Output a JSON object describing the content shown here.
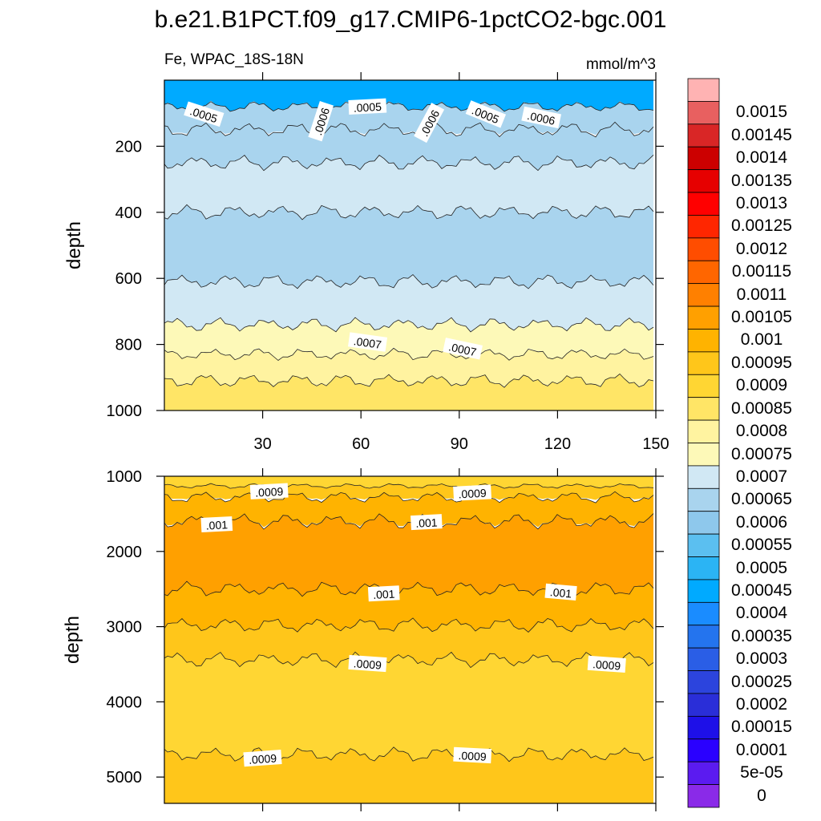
{
  "chart_data": [
    {
      "type": "filled-contour",
      "title": "b.e21.B1PCT.f09_g17.CMIP6-1pctCO2-bgc.001",
      "left_string": "Fe, WPAC_18S-18N",
      "right_string": "mmol/m^3",
      "ylabel": "depth",
      "xlabel": "",
      "xlim": [
        0,
        150
      ],
      "ylim": [
        1000,
        0
      ],
      "xticks": [
        30,
        60,
        90,
        120,
        150
      ],
      "xtick_labels": [
        "30",
        "60",
        "90",
        "120",
        "150"
      ],
      "yticks": [
        200,
        400,
        600,
        800,
        1000
      ],
      "ytick_labels": [
        "200",
        "400",
        "600",
        "800",
        "1000"
      ],
      "bands": [
        {
          "from": 0,
          "to": 80,
          "value": 0.0004
        },
        {
          "from": 80,
          "to": 150,
          "value": 0.0006
        },
        {
          "from": 150,
          "to": 250,
          "value": 0.0006
        },
        {
          "from": 250,
          "to": 400,
          "value": 0.00065
        },
        {
          "from": 400,
          "to": 610,
          "value": 0.0006
        },
        {
          "from": 610,
          "to": 740,
          "value": 0.00065
        },
        {
          "from": 740,
          "to": 830,
          "value": 0.0007
        },
        {
          "from": 830,
          "to": 910,
          "value": 0.00075
        },
        {
          "from": 910,
          "to": 1000,
          "value": 0.0008
        }
      ],
      "contour_labels": [
        {
          "text": ".0005",
          "x": 12,
          "y": 105,
          "angle": 18
        },
        {
          "text": ".0006",
          "x": 48,
          "y": 125,
          "angle": -72
        },
        {
          "text": ".0005",
          "x": 62,
          "y": 82,
          "angle": -3
        },
        {
          "text": ".0006",
          "x": 81,
          "y": 130,
          "angle": -62
        },
        {
          "text": ".0005",
          "x": 98,
          "y": 105,
          "angle": 22
        },
        {
          "text": ".0006",
          "x": 115,
          "y": 115,
          "angle": 12
        },
        {
          "text": ".0007",
          "x": 62,
          "y": 795,
          "angle": 8
        },
        {
          "text": ".0007",
          "x": 91,
          "y": 815,
          "angle": 12
        }
      ]
    },
    {
      "type": "filled-contour",
      "ylabel": "depth",
      "xlabel": "",
      "xlim": [
        0,
        150
      ],
      "ylim": [
        5350,
        1000
      ],
      "xticks": [
        30,
        60,
        90,
        120,
        150
      ],
      "yticks": [
        1000,
        2000,
        3000,
        4000,
        5000
      ],
      "ytick_labels": [
        "1000",
        "2000",
        "3000",
        "4000",
        "5000"
      ],
      "bands": [
        {
          "from": 1000,
          "to": 1130,
          "value": 0.00085
        },
        {
          "from": 1130,
          "to": 1280,
          "value": 0.0009
        },
        {
          "from": 1280,
          "to": 1600,
          "value": 0.00095
        },
        {
          "from": 1600,
          "to": 2500,
          "value": 0.001
        },
        {
          "from": 2500,
          "to": 2980,
          "value": 0.00095
        },
        {
          "from": 2980,
          "to": 3440,
          "value": 0.0009
        },
        {
          "from": 3440,
          "to": 4700,
          "value": 0.00085
        },
        {
          "from": 4700,
          "to": 5350,
          "value": 0.0009
        }
      ],
      "contour_labels": [
        {
          "text": ".0009",
          "x": 32,
          "y": 1210,
          "angle": -3
        },
        {
          "text": ".0009",
          "x": 94,
          "y": 1230,
          "angle": -3
        },
        {
          "text": ".001",
          "x": 16,
          "y": 1650,
          "angle": -3
        },
        {
          "text": ".001",
          "x": 80,
          "y": 1620,
          "angle": -3
        },
        {
          "text": ".001",
          "x": 67,
          "y": 2570,
          "angle": -3
        },
        {
          "text": ".001",
          "x": 121,
          "y": 2550,
          "angle": 5
        },
        {
          "text": ".0009",
          "x": 62,
          "y": 3500,
          "angle": 4
        },
        {
          "text": ".0009",
          "x": 135,
          "y": 3510,
          "angle": 4
        },
        {
          "text": ".0009",
          "x": 30,
          "y": 4760,
          "angle": -4
        },
        {
          "text": ".0009",
          "x": 94,
          "y": 4720,
          "angle": 3
        }
      ]
    }
  ],
  "colorbar": {
    "levels": [
      "0.0015",
      "0.00145",
      "0.0014",
      "0.00135",
      "0.0013",
      "0.00125",
      "0.0012",
      "0.00115",
      "0.0011",
      "0.00105",
      "0.001",
      "0.00095",
      "0.0009",
      "0.00085",
      "0.0008",
      "0.00075",
      "0.0007",
      "0.00065",
      "0.0006",
      "0.00055",
      "0.0005",
      "0.00045",
      "0.0004",
      "0.00035",
      "0.0003",
      "0.00025",
      "0.0002",
      "0.00015",
      "0.0001",
      "5e-05",
      "0"
    ],
    "colors": [
      "#ffb3b3",
      "#e86060",
      "#d92626",
      "#cc0000",
      "#e60000",
      "#ff0000",
      "#ff2600",
      "#ff4d00",
      "#ff6600",
      "#ff8000",
      "#ffa000",
      "#ffb300",
      "#ffc61a",
      "#ffd633",
      "#ffe566",
      "#fff3a0",
      "#fdf9b8",
      "#d1e8f4",
      "#a9d4ee",
      "#8ec8ec",
      "#5bbff0",
      "#2bb4f4",
      "#00aaff",
      "#1a8cff",
      "#2474ee",
      "#2a5ee6",
      "#2c44dd",
      "#2a2ed8",
      "#1e10e8",
      "#2a00ff",
      "#5b1bf0",
      "#8a2ae8"
    ]
  }
}
